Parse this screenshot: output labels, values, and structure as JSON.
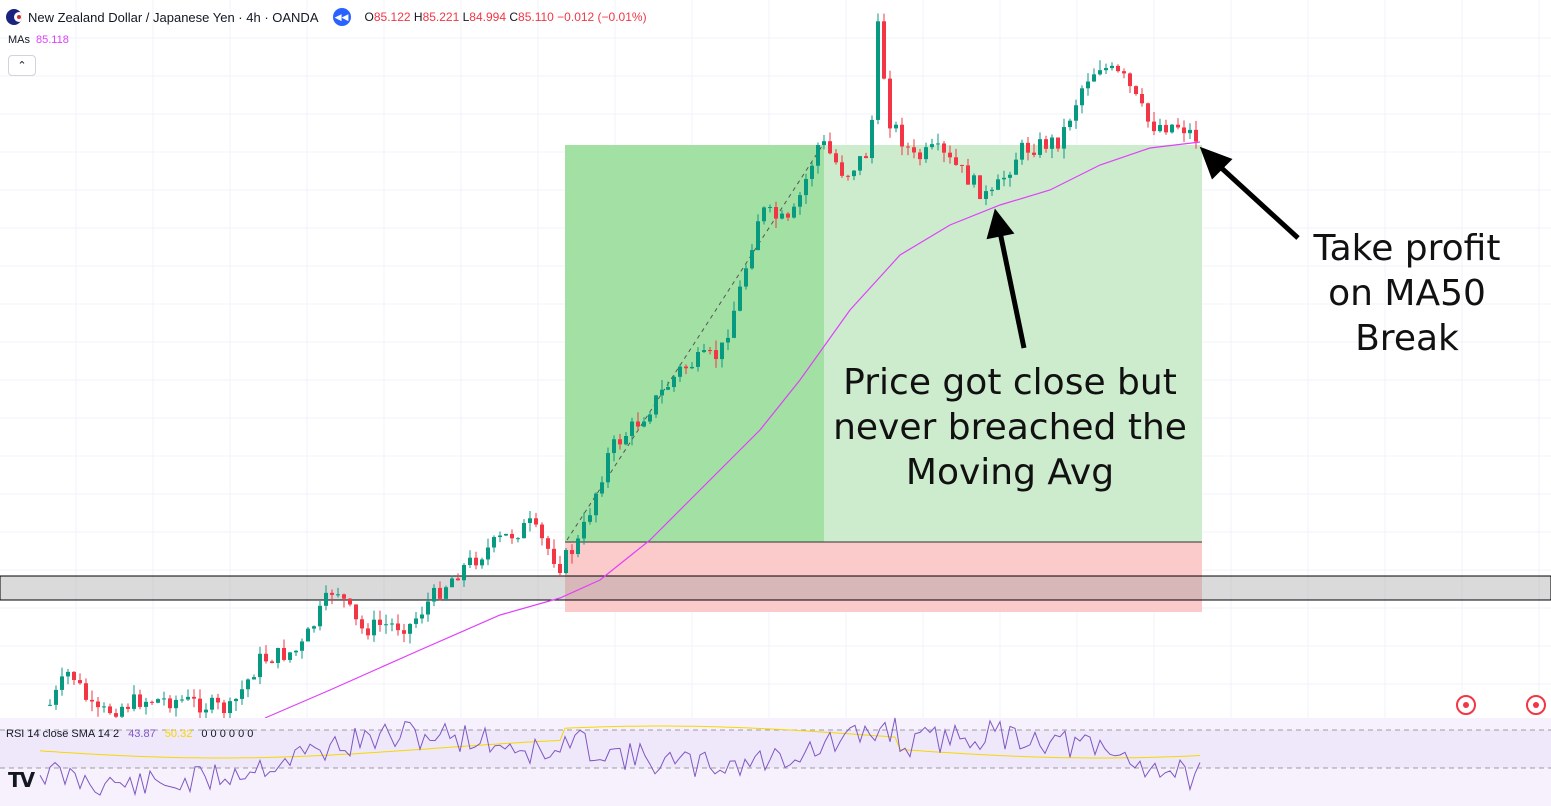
{
  "header": {
    "symbol_title": "New Zealand Dollar / Japanese Yen · 4h · OANDA",
    "ohlc": [
      {
        "k": "O",
        "v": "85.122"
      },
      {
        "k": "H",
        "v": "85.221"
      },
      {
        "k": "L",
        "v": "84.994"
      },
      {
        "k": "C",
        "v": "85.110"
      }
    ],
    "change": "−0.012 (−0.01%)",
    "replay_icon": "rewind-icon"
  },
  "indicators": {
    "ma_label": "MAs",
    "ma_value": "85.118",
    "collapse_icon": "chevron-up-icon",
    "rsi_label": "RSI 14 close SMA 14 2",
    "rsi_value": "43.87",
    "rsi_ma_value": "50.32",
    "rsi_zeros": "0 0 0 0 0 0"
  },
  "annotations": {
    "take_profit": "Take profit\non MA50\nBreak",
    "price_close": "Price got close but\nnever breached the\nMoving Avg"
  },
  "colors": {
    "up": "#089981",
    "down": "#f23645",
    "ma": "#e040fb",
    "profit_zone": "#a3e0a3",
    "profit_zone_light": "#cdebcd",
    "loss_zone": "#fbcaca",
    "rsi": "#7e57c2",
    "rsi_ma": "#f5d800",
    "rsi_band": "#efe7fa"
  },
  "logo": "TradingView"
}
